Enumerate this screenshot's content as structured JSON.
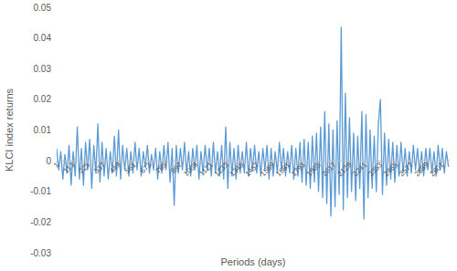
{
  "chart_data": {
    "type": "line",
    "x_label": "Periods (days)",
    "y_label": "KLCI index returns",
    "color": "#5b9bd5",
    "grid": false,
    "xlim": [
      1,
      2860
    ],
    "xticks": [
      1,
      113,
      225,
      337,
      449,
      561,
      673,
      785,
      897,
      1009,
      1121,
      1233,
      1345,
      1457,
      1569,
      1681,
      1793,
      1905,
      2017,
      2129,
      2241,
      2353,
      2465,
      2577,
      2689,
      2801
    ],
    "ylim": [
      -0.03,
      0.05
    ],
    "yticks": [
      -0.03,
      -0.02,
      -0.01,
      0,
      0.01,
      0.02,
      0.03,
      0.04,
      0.05
    ],
    "x": [
      1,
      16,
      31,
      46,
      61,
      76,
      91,
      106,
      121,
      136,
      151,
      166,
      181,
      196,
      211,
      226,
      241,
      256,
      271,
      286,
      301,
      316,
      331,
      346,
      361,
      376,
      391,
      406,
      421,
      436,
      451,
      466,
      481,
      496,
      511,
      526,
      541,
      556,
      571,
      586,
      601,
      616,
      631,
      646,
      661,
      676,
      691,
      706,
      721,
      736,
      751,
      766,
      781,
      796,
      811,
      826,
      841,
      856,
      871,
      886,
      901,
      916,
      931,
      946,
      961,
      976,
      991,
      1006,
      1021,
      1036,
      1051,
      1066,
      1081,
      1096,
      1111,
      1126,
      1141,
      1156,
      1171,
      1186,
      1201,
      1216,
      1231,
      1246,
      1261,
      1276,
      1291,
      1306,
      1321,
      1336,
      1351,
      1366,
      1381,
      1396,
      1411,
      1426,
      1441,
      1456,
      1471,
      1486,
      1501,
      1516,
      1531,
      1546,
      1561,
      1576,
      1591,
      1606,
      1621,
      1636,
      1651,
      1666,
      1681,
      1696,
      1711,
      1726,
      1741,
      1756,
      1771,
      1786,
      1801,
      1816,
      1831,
      1846,
      1861,
      1876,
      1891,
      1906,
      1921,
      1936,
      1951,
      1966,
      1981,
      1996,
      2011,
      2026,
      2041,
      2056,
      2071,
      2086,
      2101,
      2116,
      2131,
      2146,
      2161,
      2176,
      2191,
      2206,
      2221,
      2236,
      2251,
      2266,
      2281,
      2296,
      2311,
      2326,
      2341,
      2356,
      2371,
      2386,
      2401,
      2416,
      2431,
      2446,
      2461,
      2476,
      2491,
      2506,
      2521,
      2536,
      2551,
      2566,
      2581,
      2596,
      2611,
      2626,
      2641,
      2656,
      2671,
      2686,
      2701,
      2716,
      2731,
      2746,
      2761,
      2776,
      2791,
      2806,
      2821,
      2836,
      2851
    ],
    "values": [
      0.004,
      -0.003,
      0.003,
      -0.006,
      0.002,
      -0.004,
      0.005,
      -0.008,
      0.003,
      -0.005,
      0.011,
      -0.006,
      0.004,
      -0.008,
      0.006,
      -0.003,
      0.007,
      -0.009,
      0.005,
      -0.004,
      0.012,
      -0.007,
      0.006,
      -0.005,
      0.004,
      -0.006,
      0.003,
      -0.004,
      0.008,
      -0.005,
      0.01,
      -0.006,
      0.005,
      -0.003,
      0.004,
      -0.005,
      0.003,
      -0.004,
      0.006,
      -0.003,
      0.004,
      -0.005,
      0.003,
      -0.002,
      0.005,
      -0.004,
      0.002,
      -0.003,
      0.004,
      -0.006,
      0.003,
      -0.004,
      0.005,
      -0.003,
      0.006,
      -0.007,
      0.004,
      -0.0145,
      0.005,
      -0.004,
      0.004,
      -0.003,
      0.006,
      -0.004,
      0.003,
      -0.005,
      0.004,
      -0.003,
      0.005,
      -0.006,
      0.003,
      -0.004,
      0.005,
      -0.003,
      0.004,
      -0.005,
      0.006,
      -0.004,
      0.003,
      -0.005,
      0.005,
      -0.006,
      0.011,
      -0.009,
      0.006,
      -0.005,
      0.004,
      -0.006,
      0.005,
      -0.004,
      0.003,
      -0.004,
      0.006,
      -0.005,
      0.004,
      -0.003,
      0.005,
      -0.004,
      0.003,
      -0.005,
      0.004,
      -0.003,
      0.005,
      -0.006,
      0.004,
      -0.005,
      0.003,
      -0.004,
      0.006,
      -0.003,
      0.004,
      -0.005,
      0.003,
      -0.004,
      0.005,
      -0.006,
      0.004,
      -0.005,
      0.006,
      -0.007,
      0.007,
      -0.008,
      0.006,
      -0.009,
      0.008,
      -0.007,
      0.009,
      -0.01,
      0.011,
      -0.012,
      0.016,
      -0.014,
      0.012,
      -0.018,
      0.01,
      -0.015,
      0.013,
      -0.011,
      0.0435,
      -0.016,
      0.022,
      -0.012,
      0.014,
      -0.01,
      0.009,
      -0.013,
      0.008,
      -0.009,
      0.016,
      -0.019,
      0.015,
      -0.012,
      0.01,
      -0.009,
      0.008,
      -0.01,
      0.012,
      0.02,
      -0.011,
      0.009,
      -0.008,
      0.007,
      -0.006,
      0.006,
      -0.007,
      0.005,
      -0.005,
      0.006,
      -0.004,
      0.004,
      -0.005,
      0.003,
      -0.004,
      0.005,
      -0.003,
      0.004,
      -0.004,
      0.003,
      -0.005,
      0.004,
      -0.003,
      0.004,
      -0.004,
      0.003,
      -0.005,
      0.005,
      -0.003,
      0.004,
      -0.004,
      0.003,
      -0.002
    ]
  }
}
